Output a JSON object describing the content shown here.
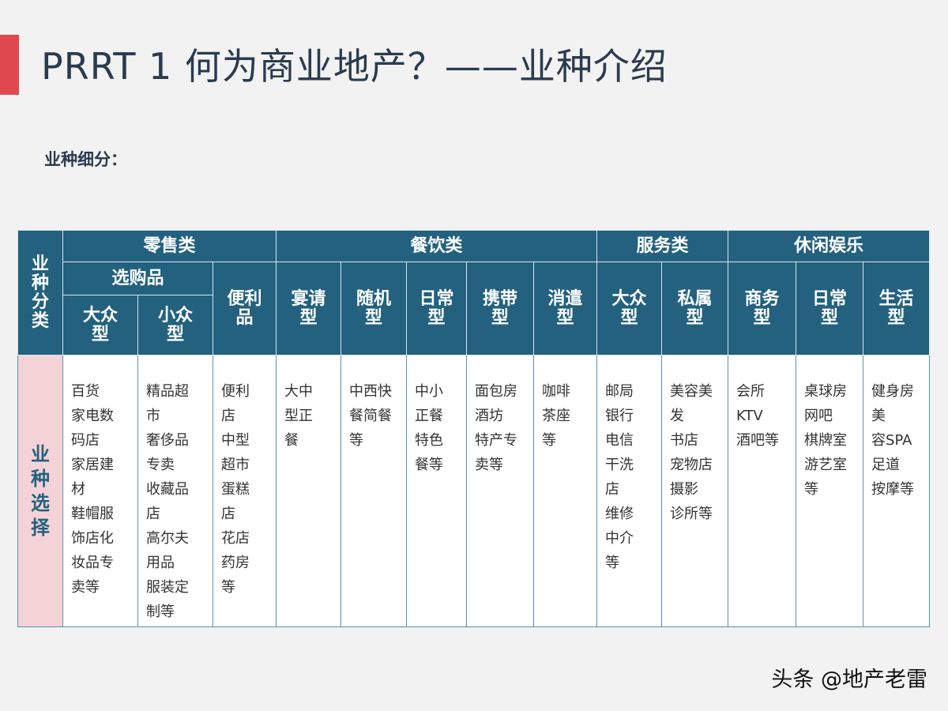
{
  "title": "PRRT 1 何为商业地产？——业种介绍",
  "subtitle": "业种细分：",
  "table": {
    "corner_label": [
      "业",
      "种",
      "分",
      "类"
    ],
    "row_label": [
      "业",
      "种",
      "选",
      "择"
    ],
    "categories": [
      "零售类",
      "餐饮类",
      "服务类",
      "休闲娱乐"
    ],
    "retail": {
      "shopping": "选购品",
      "convenience": [
        "便利",
        "品"
      ],
      "mass": [
        "大众",
        "型"
      ],
      "niche": [
        "小众",
        "型"
      ]
    },
    "types": {
      "banquet": [
        "宴请",
        "型"
      ],
      "casual": [
        "随机",
        "型"
      ],
      "daily_food": [
        "日常",
        "型"
      ],
      "takeaway": [
        "携带",
        "型"
      ],
      "leisure": [
        "消遣",
        "型"
      ],
      "mass_service": [
        "大众",
        "型"
      ],
      "private": [
        "私属",
        "型"
      ],
      "business": [
        "商务",
        "型"
      ],
      "daily_fun": [
        "日常",
        "型"
      ],
      "life": [
        "生活",
        "型"
      ]
    },
    "cells": [
      [
        "百货",
        "家电数",
        "码店",
        "家居建",
        "材",
        "鞋帽服",
        "饰店化",
        "妆品专",
        "卖等"
      ],
      [
        "精品超",
        "市",
        "奢侈品",
        "专卖",
        "收藏品",
        "店",
        "高尔夫",
        "用品",
        "服装定",
        "制等"
      ],
      [
        "便利",
        "店",
        "中型",
        "超市",
        "蛋糕",
        "店",
        "花店",
        "药房",
        "等"
      ],
      [
        "大中",
        "型正",
        "餐"
      ],
      [
        "中西快",
        "餐简餐",
        "等"
      ],
      [
        "中小",
        "正餐",
        "特色",
        "餐等"
      ],
      [
        "面包房",
        "酒坊",
        "特产专",
        "卖等"
      ],
      [
        "咖啡",
        "茶座",
        "等"
      ],
      [
        "邮局",
        "银行",
        "电信",
        "干洗",
        "店",
        "维修",
        "中介",
        "等"
      ],
      [
        "美容美",
        "发",
        "书店",
        "宠物店",
        "摄影",
        "诊所等"
      ],
      [
        "会所",
        "KTV",
        "酒吧等"
      ],
      [
        "桌球房",
        "网吧",
        "棋牌室",
        "游艺室",
        "等"
      ],
      [
        "健身房",
        "美",
        "容SPA",
        "足道",
        "按摩等"
      ]
    ]
  },
  "watermark": "头条 @地产老雷"
}
